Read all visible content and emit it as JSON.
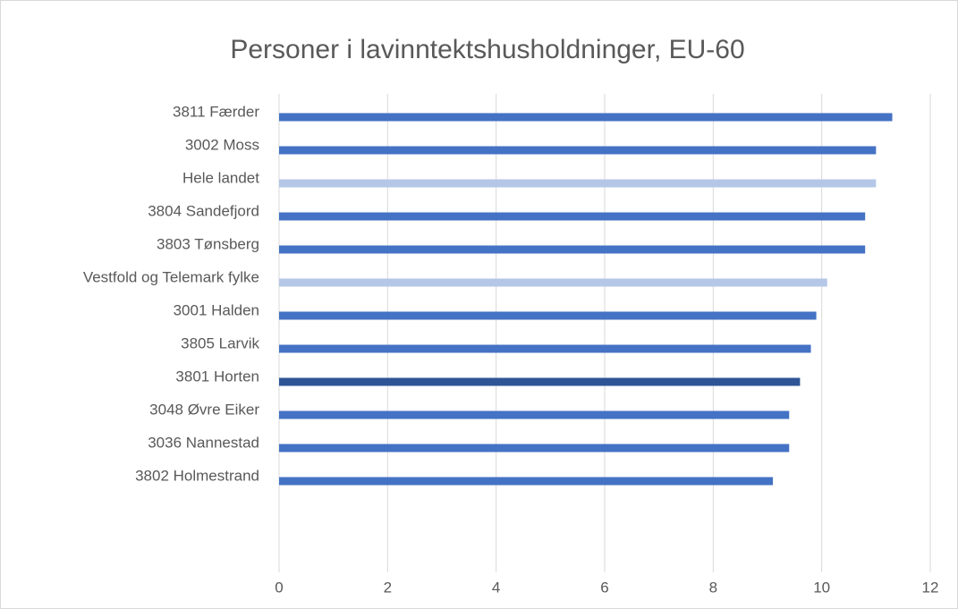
{
  "chart_data": {
    "type": "bar",
    "orientation": "horizontal",
    "title": "Personer i lavinntektshusholdninger, EU-60",
    "categories": [
      "3811 Færder",
      "3002 Moss",
      "Hele landet",
      "3804 Sandefjord",
      "3803 Tønsberg",
      "Vestfold og Telemark fylke",
      "3001 Halden",
      "3805 Larvik",
      "3801 Horten",
      "3048 Øvre Eiker",
      "3036 Nannestad",
      "3802 Holmestrand"
    ],
    "values": [
      11.3,
      11.0,
      11.0,
      10.8,
      10.8,
      10.1,
      9.9,
      9.8,
      9.6,
      9.4,
      9.4,
      9.1
    ],
    "colors": [
      "#4472c4",
      "#4472c4",
      "#b4c7e7",
      "#4472c4",
      "#4472c4",
      "#b4c7e7",
      "#4472c4",
      "#4472c4",
      "#2f5597",
      "#4472c4",
      "#4472c4",
      "#4472c4"
    ],
    "xlim": [
      0,
      12
    ],
    "xticks": [
      0,
      2,
      4,
      6,
      8,
      10,
      12
    ],
    "grid": true
  }
}
